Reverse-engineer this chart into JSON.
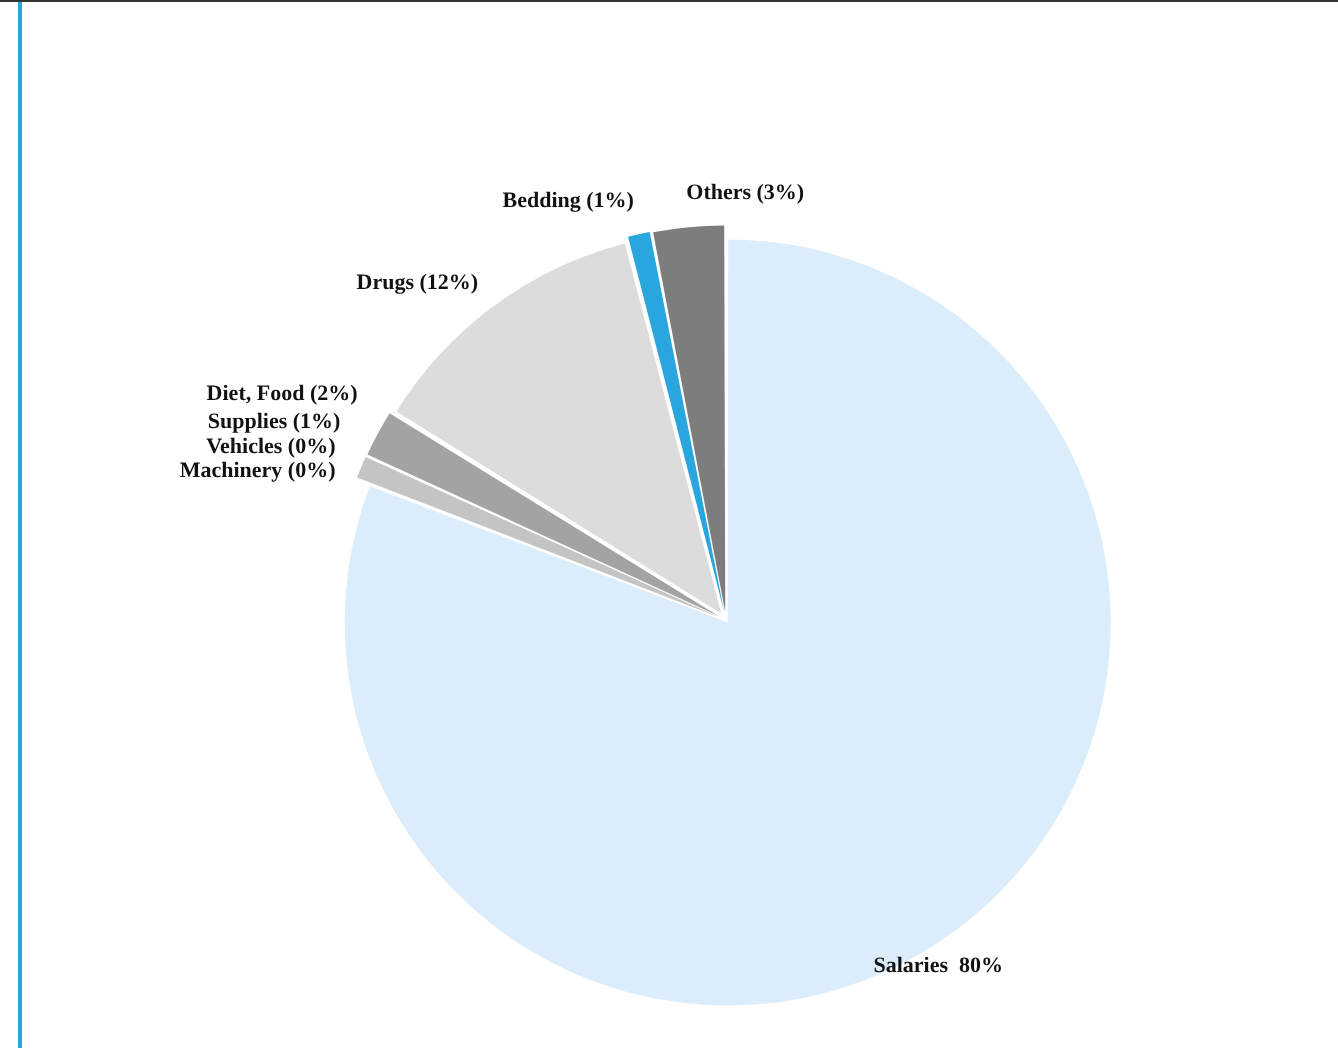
{
  "chart_data": {
    "type": "pie",
    "categories": [
      "Salaries  80%",
      "Machinery (0%)",
      "Vehicles (0%)",
      "Supplies (1%)",
      "Diet, Food (2%)",
      "Drugs (12%)",
      "Bedding (1%)",
      "Others (3%)"
    ],
    "values": [
      80,
      0,
      0,
      1,
      2,
      12,
      1,
      3
    ],
    "colors": [
      "#dbedfa",
      "#111111",
      "#a9d3ef",
      "#c4c4c4",
      "#a3a3a3",
      "#dcdcdc",
      "#2aa6df",
      "#7d7d7d"
    ],
    "legend": false
  }
}
